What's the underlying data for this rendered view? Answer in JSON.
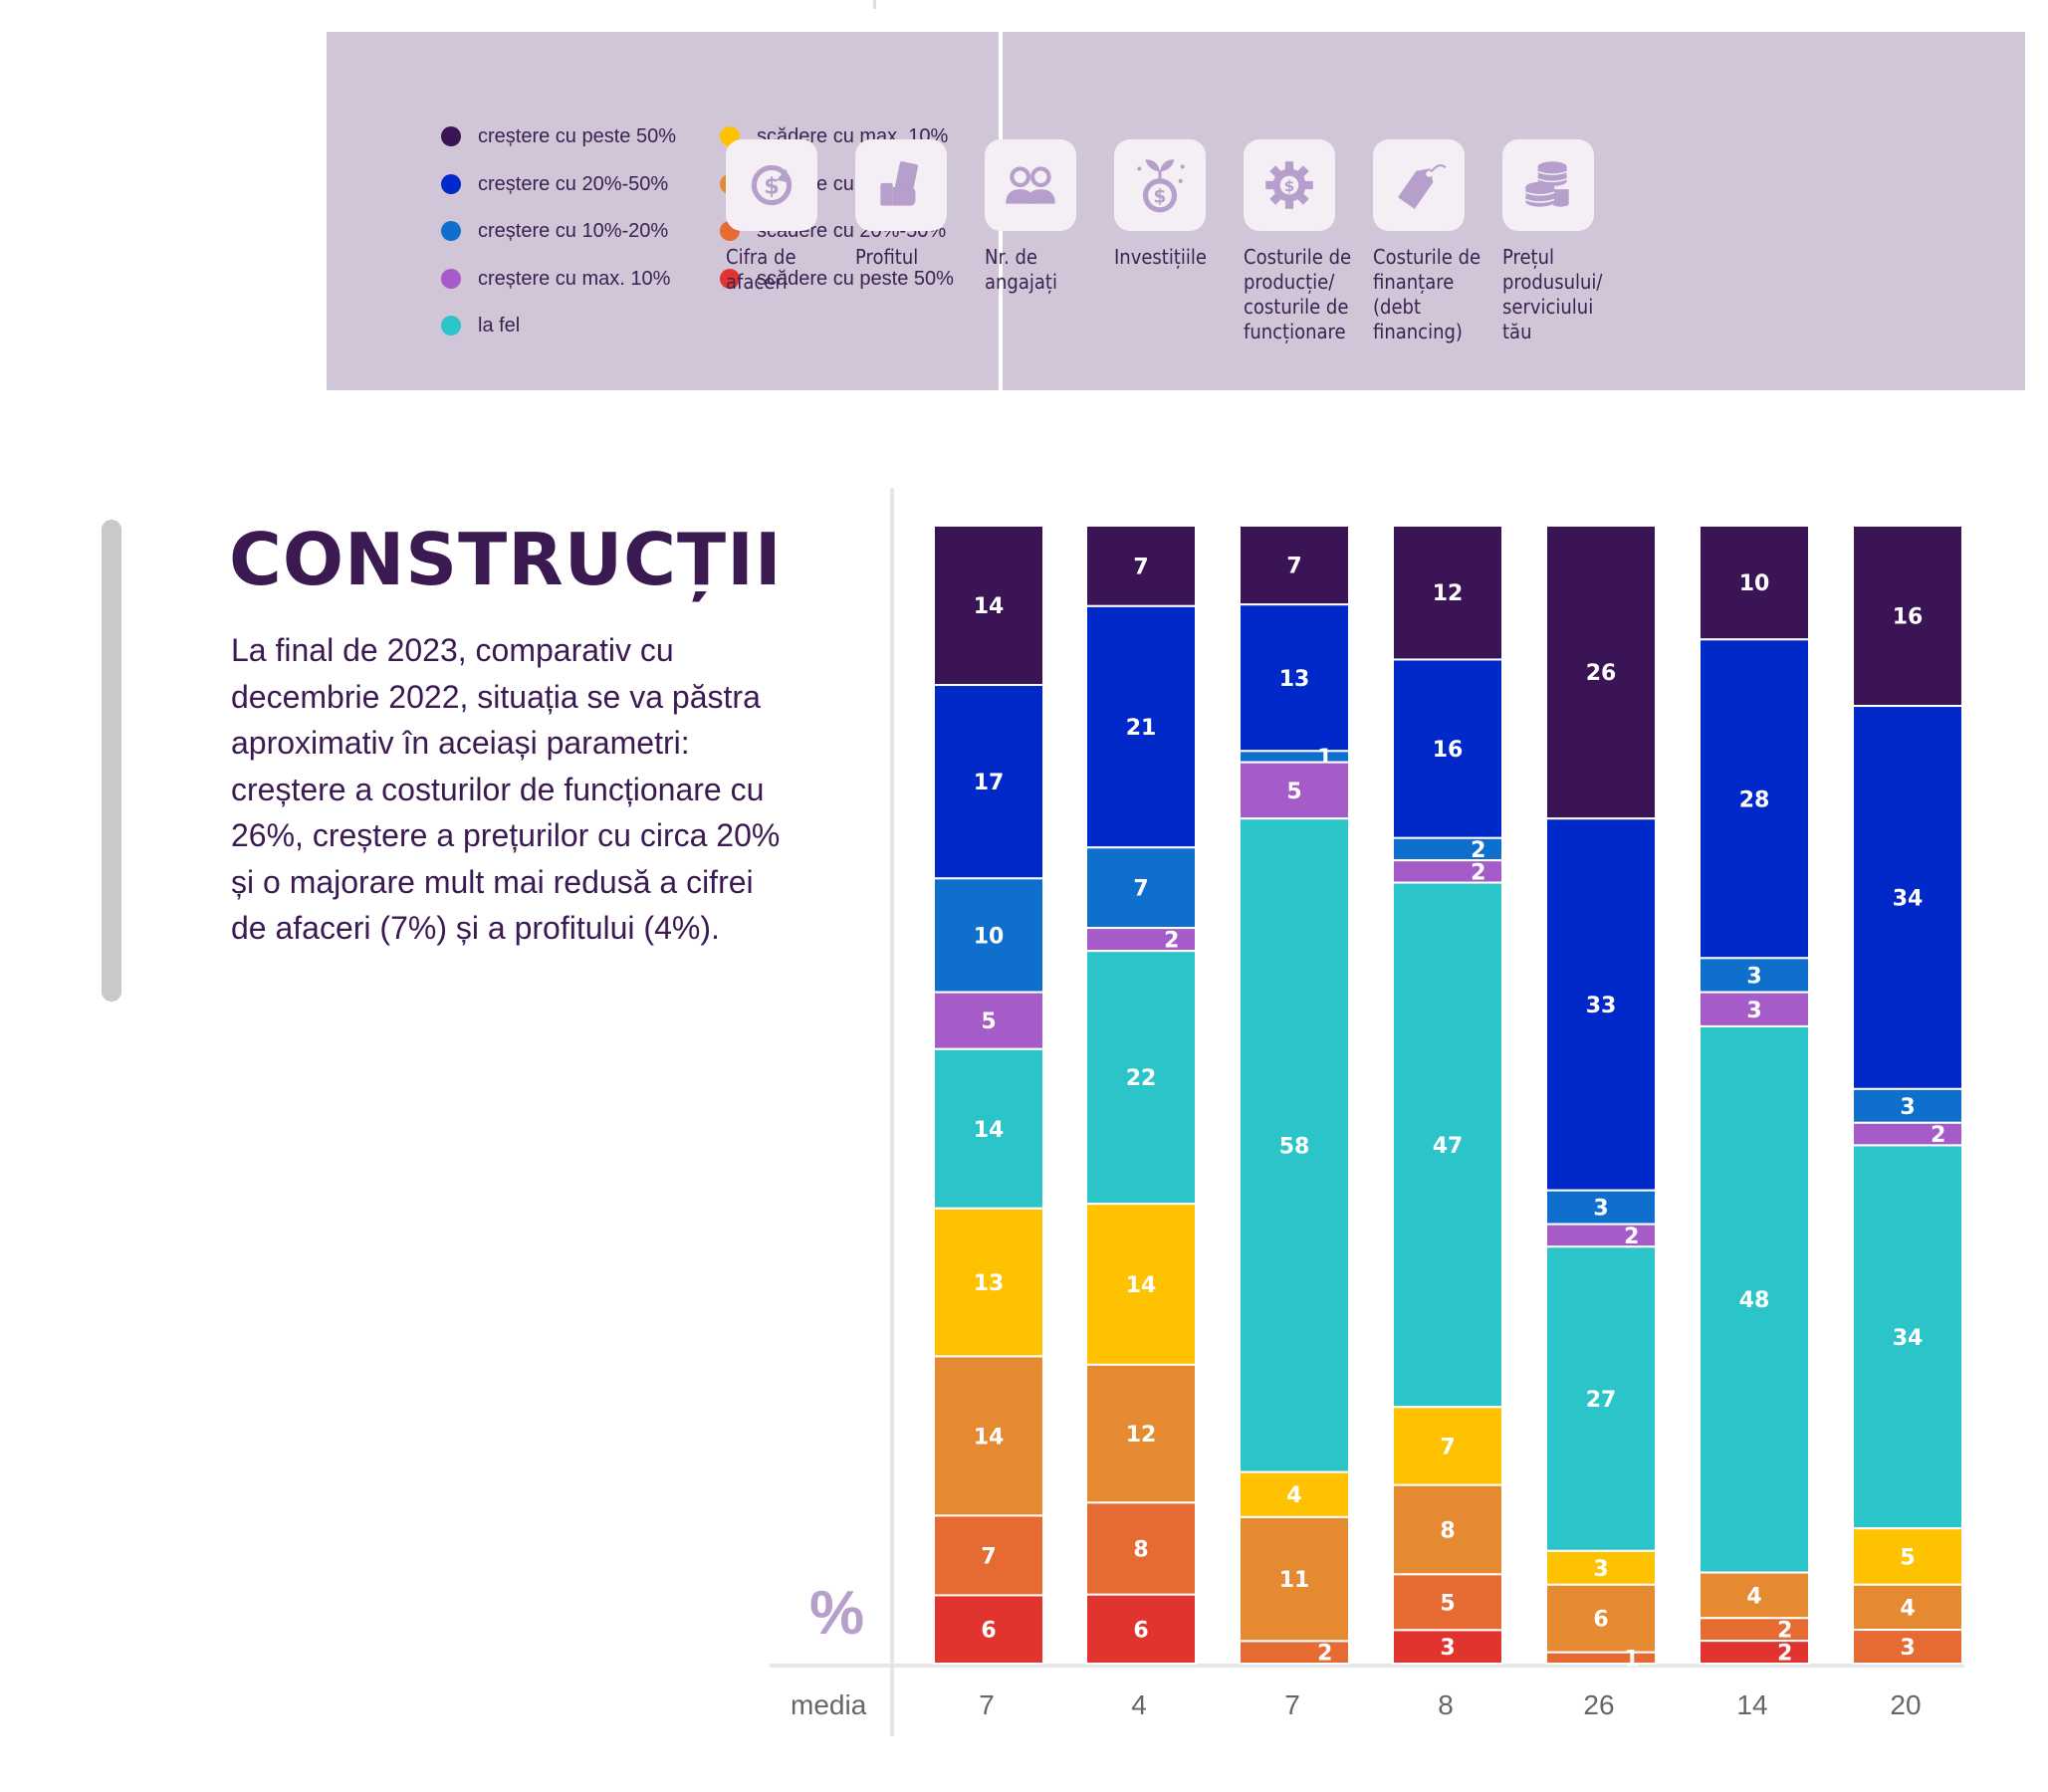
{
  "legend": {
    "items": [
      {
        "key": "peste50",
        "label": "creștere cu peste 50%",
        "color": "#3b1455"
      },
      {
        "key": "c2050",
        "label": "creștere cu 20%-50%",
        "color": "#0128c9"
      },
      {
        "key": "c1020",
        "label": "creștere cu 10%-20%",
        "color": "#0e6fcd"
      },
      {
        "key": "cmax10",
        "label": "creștere cu max. 10%",
        "color": "#a55cc9"
      },
      {
        "key": "lafel",
        "label": "la fel",
        "color": "#2bc5c9"
      },
      {
        "key": "smax10",
        "label": "scădere cu max. 10%",
        "color": "#ffc200"
      },
      {
        "key": "s1020",
        "label": "scădere cu 10%-20%",
        "color": "#e68a31"
      },
      {
        "key": "s2050",
        "label": "scădere cu 20%-50%",
        "color": "#e56b33"
      },
      {
        "key": "speste50",
        "label": "scădere cu peste 50%",
        "color": "#e2342f"
      }
    ]
  },
  "indicators": [
    {
      "label": "Cifra de\nafaceri",
      "icon": "dollar-cycle-icon"
    },
    {
      "label": "Profitul",
      "icon": "money-hand-icon"
    },
    {
      "label": "Nr. de\nangajați",
      "icon": "people-icon"
    },
    {
      "label": "Investițiile",
      "icon": "growing-coin-icon"
    },
    {
      "label": "Costurile de\nproducție/\ncosturile de\nfuncționare",
      "icon": "dollar-gear-icon"
    },
    {
      "label": "Costurile de\nfinanțare\n(debt\nfinancing)",
      "icon": "price-tag-icon"
    },
    {
      "label": "Prețul\nprodusului/\nserviciului\ntău",
      "icon": "coin-stack-icon"
    }
  ],
  "section": {
    "title": "CONSTRUCȚII",
    "description": "La final de 2023, comparativ cu decembrie 2022, situația se va păstra aproximativ în aceiași parametri: creștere a costurilor de funcționare cu 26%, creștere a prețurilor cu circa 20% și o majorare mult mai redusă a cifrei de afaceri (7%) și a profitului (4%)."
  },
  "chart": {
    "unit_label": "%",
    "media_label": "media"
  },
  "chart_data": {
    "type": "bar",
    "stacked": true,
    "categories": [
      "Cifra de afaceri",
      "Profitul",
      "Nr. de angajați",
      "Investițiile",
      "Costurile de producție/costurile de funcționare",
      "Costurile de finanțare (debt financing)",
      "Prețul produsului/serviciului tău"
    ],
    "series": [
      {
        "name": "creștere cu peste 50%",
        "color": "#3b1455",
        "label_color": "#ffffff",
        "values": [
          14,
          7,
          7,
          12,
          26,
          10,
          16
        ]
      },
      {
        "name": "creștere cu 20%-50%",
        "color": "#0128c9",
        "label_color": "#ffffff",
        "values": [
          17,
          21,
          13,
          16,
          33,
          28,
          34
        ]
      },
      {
        "name": "creștere cu 10%-20%",
        "color": "#0e6fcd",
        "label_color": "#ffffff",
        "values": [
          10,
          7,
          1,
          2,
          3,
          3,
          3
        ]
      },
      {
        "name": "creștere cu max. 10%",
        "color": "#a55cc9",
        "label_color": "#ffffff",
        "values": [
          5,
          2,
          5,
          2,
          2,
          3,
          2
        ]
      },
      {
        "name": "la fel",
        "color": "#2bc5c9",
        "label_color": "#ffffff",
        "values": [
          14,
          22,
          58,
          47,
          27,
          48,
          34
        ]
      },
      {
        "name": "scădere cu max. 10%",
        "color": "#ffc200",
        "label_color": "#ffffff",
        "values": [
          13,
          14,
          4,
          7,
          3,
          0,
          5
        ]
      },
      {
        "name": "scădere cu 10%-20%",
        "color": "#e68a31",
        "label_color": "#ffffff",
        "values": [
          14,
          12,
          11,
          8,
          6,
          4,
          4
        ]
      },
      {
        "name": "scădere cu 20%-50%",
        "color": "#e56b33",
        "label_color": "#ffffff",
        "values": [
          7,
          8,
          2,
          5,
          1,
          2,
          3
        ]
      },
      {
        "name": "scădere cu peste 50%",
        "color": "#e2342f",
        "label_color": "#ffffff",
        "values": [
          6,
          6,
          0,
          3,
          0,
          2,
          0
        ]
      }
    ],
    "media": [
      7,
      4,
      7,
      8,
      26,
      14,
      20
    ],
    "ylabel": "%",
    "ylim": [
      0,
      100
    ],
    "legend": "top-left",
    "grid": false
  }
}
